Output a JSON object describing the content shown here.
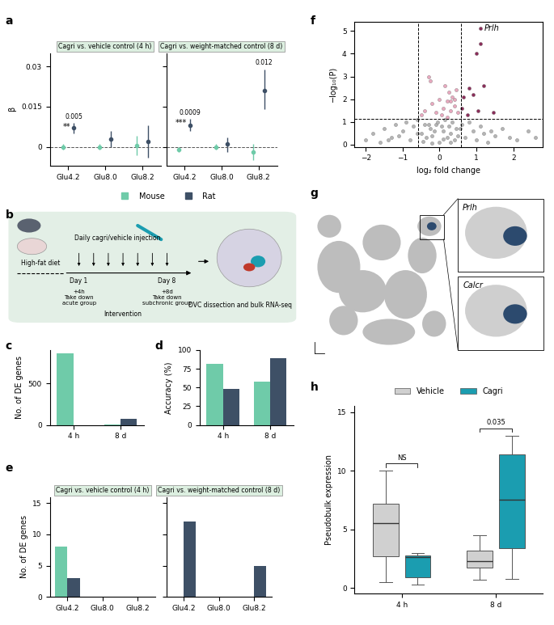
{
  "chart_data": [
    {
      "type": "pointrange",
      "panel_label": "a",
      "title": "Cagri vs. vehicle control (4 h)",
      "y_label": "β",
      "categories": [
        "Glu4.2",
        "Glu8.0",
        "Glu8.2"
      ],
      "ylim": [
        -0.007,
        0.035
      ],
      "yticks": [
        0,
        0.015,
        0.03
      ],
      "hline": 0,
      "legend": "lower center",
      "series": [
        {
          "name": "Mouse",
          "color": "#6fcba9",
          "values": [
            0,
            0,
            0.0005
          ],
          "lower": [
            -0.001,
            -0.001,
            -0.003
          ],
          "upper": [
            0.001,
            0.001,
            0.004
          ]
        },
        {
          "name": "Rat",
          "color": "#3e5066",
          "values": [
            0.007,
            0.003,
            0.002
          ],
          "lower": [
            0.005,
            0,
            -0.004
          ],
          "upper": [
            0.009,
            0.006,
            0.008
          ]
        }
      ],
      "annotations": [
        {
          "category": "Glu4.2",
          "series": "Rat",
          "text": "0.005",
          "stars": "**"
        }
      ]
    },
    {
      "type": "pointrange",
      "title": "Cagri vs. weight-matched control (8 d)",
      "categories": [
        "Glu4.2",
        "Glu8.0",
        "Glu8.2"
      ],
      "ylim": [
        -0.007,
        0.035
      ],
      "yticks": [
        0,
        0.015,
        0.03
      ],
      "hline": 0,
      "tick_labels": "x",
      "series": [
        {
          "name": "Mouse",
          "color": "#6fcba9",
          "values": [
            -0.001,
            0,
            -0.002
          ],
          "lower": [
            -0.002,
            -0.001,
            -0.005
          ],
          "upper": [
            0,
            0.001,
            0.001
          ]
        },
        {
          "name": "Rat",
          "color": "#3e5066",
          "values": [
            0.008,
            0.001,
            0.021
          ],
          "lower": [
            0.006,
            -0.002,
            0.014
          ],
          "upper": [
            0.0105,
            0.0035,
            0.029
          ]
        }
      ],
      "annotations": [
        {
          "category": "Glu4.2",
          "series": "Rat",
          "text": "0.0009",
          "stars": "***"
        },
        {
          "category": "Glu8.2",
          "series": "Rat",
          "text": "0.012"
        }
      ]
    },
    {
      "type": "bar",
      "panel_label": "c",
      "y_label": "No. of DE genes",
      "categories": [
        "4 h",
        "8 d"
      ],
      "ylim": [
        0,
        900
      ],
      "yticks": [
        0,
        500
      ],
      "series": [
        {
          "name": "Mouse",
          "color": "#6fcba9",
          "values": [
            860,
            8
          ]
        },
        {
          "name": "Rat",
          "color": "#3e5066",
          "values": [
            0,
            75
          ]
        }
      ]
    },
    {
      "type": "bar",
      "panel_label": "d",
      "y_label": "Accuracy (%)",
      "categories": [
        "4 h",
        "8 d"
      ],
      "ylim": [
        0,
        100
      ],
      "yticks": [
        0,
        25,
        50,
        75,
        100
      ],
      "series": [
        {
          "name": "Mouse",
          "color": "#6fcba9",
          "values": [
            82,
            58
          ]
        },
        {
          "name": "Rat",
          "color": "#3e5066",
          "values": [
            48,
            89
          ]
        }
      ]
    },
    {
      "type": "bar",
      "panel_label": "e",
      "title": "Cagri vs. vehicle control (4 h)",
      "y_label": "No. of DE genes",
      "categories": [
        "Glu4.2",
        "Glu8.0",
        "Glu8.2"
      ],
      "ylim": [
        0,
        16
      ],
      "yticks": [
        0,
        5,
        10,
        15
      ],
      "series": [
        {
          "name": "Mouse",
          "color": "#6fcba9",
          "values": [
            8,
            0,
            0
          ]
        },
        {
          "name": "Rat",
          "color": "#3e5066",
          "values": [
            3,
            0,
            0
          ]
        }
      ]
    },
    {
      "type": "bar",
      "title": "Cagri vs. weight-matched control (8 d)",
      "tick_labels": "x",
      "categories": [
        "Glu4.2",
        "Glu8.0",
        "Glu8.2"
      ],
      "ylim": [
        0,
        16
      ],
      "yticks": [
        0,
        5,
        10,
        15
      ],
      "series": [
        {
          "name": "Mouse",
          "color": "#6fcba9",
          "values": [
            0,
            0,
            0
          ]
        },
        {
          "name": "Rat",
          "color": "#3e5066",
          "values": [
            12,
            0,
            5
          ]
        }
      ]
    },
    {
      "type": "scatter",
      "panel_label": "f",
      "x_label": "log₂ fold change",
      "y_label": "−log₁₀(P)",
      "xlim": [
        -2.3,
        2.8
      ],
      "ylim": [
        -0.1,
        5.4
      ],
      "xticks": [
        {
          "value": -2,
          "label": "−2"
        },
        {
          "value": -1,
          "label": "−1"
        },
        0,
        1,
        2
      ],
      "yticks": [
        0,
        1,
        2,
        3,
        4,
        5
      ],
      "thresholds": {
        "x": [
          -0.58,
          0.58
        ],
        "y": 1.15
      },
      "series": [
        {
          "color": "#b5b5b5",
          "x": [
            -2.0,
            -1.8,
            -1.6,
            -1.5,
            -1.3,
            -1.2,
            -1.1,
            -1.0,
            -0.9,
            -0.8,
            -0.7,
            -0.6,
            -0.5,
            -0.4,
            -0.35,
            -0.3,
            -0.25,
            -0.2,
            -0.15,
            -0.1,
            -0.05,
            0.0,
            0.05,
            0.1,
            0.15,
            0.2,
            0.25,
            0.3,
            0.35,
            0.4,
            0.45,
            0.5,
            0.6,
            0.7,
            0.8,
            0.9,
            1.0,
            1.1,
            1.2,
            1.3,
            1.5,
            1.7,
            1.9,
            2.1,
            2.4,
            2.6,
            -0.45,
            -0.2,
            0.1,
            0.3,
            -0.6,
            0.55,
            -1.4,
            1.4
          ],
          "y": [
            0.2,
            0.5,
            0.1,
            0.7,
            0.3,
            0.9,
            0.4,
            0.6,
            1.0,
            0.2,
            0.8,
            1.1,
            0.5,
            0.9,
            0.3,
            0.9,
            0.7,
            0.4,
            0.6,
            0.9,
            1.0,
            0.1,
            0.8,
            0.6,
            1.1,
            0.3,
            0.8,
            0.5,
            1.0,
            0.2,
            0.7,
            0.4,
            0.9,
            0.3,
            1.0,
            0.6,
            0.2,
            0.8,
            0.5,
            0.1,
            0.4,
            0.7,
            0.3,
            0.2,
            0.6,
            0.3,
            0.15,
            0.05,
            0.25,
            0.1,
            0.5,
            0.7,
            0.2,
            0.6
          ]
        },
        {
          "color": "#e8a9bf",
          "x": [
            -0.5,
            -0.4,
            -0.3,
            -0.2,
            -0.1,
            0.0,
            0.1,
            0.15,
            0.2,
            0.25,
            0.3,
            0.35,
            0.4,
            0.45,
            0.5,
            -0.25,
            0.05,
            0.3,
            0.2,
            0.4
          ],
          "y": [
            1.3,
            1.5,
            3.0,
            1.8,
            1.4,
            2.0,
            1.6,
            2.6,
            1.9,
            2.3,
            1.5,
            2.1,
            1.7,
            2.4,
            1.4,
            2.8,
            1.3,
            1.9,
            1.2,
            2.0
          ]
        },
        {
          "color": "#8b2e5a",
          "x": [
            0.6,
            0.65,
            0.75,
            0.8,
            0.9,
            1.0,
            1.05,
            1.1,
            1.2,
            1.45,
            1.1
          ],
          "y": [
            1.6,
            2.1,
            1.3,
            2.5,
            2.2,
            4.0,
            1.5,
            4.45,
            2.6,
            1.4,
            5.1
          ]
        }
      ],
      "annotations": [
        {
          "text": "Prlh",
          "x": 1.1,
          "y": 5.1
        }
      ]
    },
    {
      "type": "box",
      "panel_label": "h",
      "y_label": "Pseudobulk expression",
      "categories": [
        "4 h",
        "8 d"
      ],
      "ylim": [
        -0.5,
        15.5
      ],
      "yticks": [
        0,
        5,
        10,
        15
      ],
      "legend": "upper center",
      "series": [
        {
          "name": "Vehicle",
          "color": "#d0d0d0",
          "whislo": [
            0.5,
            0.7
          ],
          "q1": [
            2.7,
            1.7
          ],
          "med": [
            5.5,
            2.3
          ],
          "q3": [
            7.2,
            3.2
          ],
          "whishi": [
            10,
            4.5
          ]
        },
        {
          "name": "Cagri",
          "color": "#1b9db0",
          "whislo": [
            0.3,
            0.8
          ],
          "q1": [
            0.9,
            3.4
          ],
          "med": [
            2.6,
            7.5
          ],
          "q3": [
            2.8,
            11.4
          ],
          "whishi": [
            3.0,
            13.0
          ]
        }
      ],
      "annotations": [
        {
          "category": "4 h",
          "text": "NS"
        },
        {
          "category": "8 d",
          "text": "0.035"
        }
      ]
    }
  ],
  "diagram_b": {
    "panel_label": "b",
    "texts": {
      "diet": "High-fat diet",
      "day1": "Day 1",
      "day8": "Day 8",
      "acute": "+4h\nTake down\nacute group",
      "subchronic": "+8d\nTake down\nsubchronic group",
      "intervention": "Intervention",
      "injection": "Daily cagri/vehicle injection",
      "output": "DVC dissection and bulk RNA-seq"
    }
  },
  "diagram_g": {
    "panel_label": "g",
    "insets": [
      "Prlh",
      "Calcr"
    ]
  }
}
